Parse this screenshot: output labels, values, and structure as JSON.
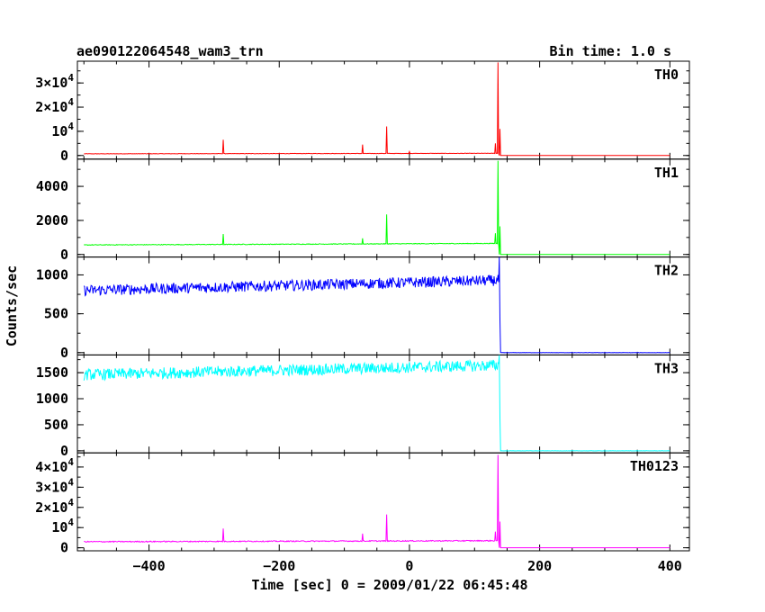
{
  "header": {
    "title": "ae090122064548_wam3_trn",
    "bin_time": "Bin time: 1.0 s"
  },
  "chart_data": {
    "type": "line",
    "title": "ae090122064548_wam3_trn",
    "xlabel": "Time [sec] 0 = 2009/01/22 06:45:48",
    "ylabel": "Counts/sec",
    "xlim": [
      -510,
      430
    ],
    "x_ticks": [
      -400,
      -200,
      0,
      200,
      400
    ],
    "x_tick_labels": [
      "−400",
      "−200",
      "0",
      "200",
      "400"
    ],
    "x_start": -500,
    "x_end": 400,
    "trigger_time": 138,
    "panels": [
      {
        "name": "TH0",
        "color": "#ff0000",
        "ylim": [
          -1500,
          39000
        ],
        "baseline_start": 700,
        "baseline_end": 900,
        "noise": 80,
        "post_level": 0,
        "y_ticks": [
          0,
          10000,
          20000,
          30000
        ],
        "y_tick_labels": [
          {
            "base": "0",
            "exp": ""
          },
          {
            "base": "10",
            "exp": "4"
          },
          {
            "base": "2×10",
            "exp": "4"
          },
          {
            "base": "3×10",
            "exp": "4"
          }
        ],
        "spikes": [
          [
            -286,
            6500
          ],
          [
            -72,
            4500
          ],
          [
            -35,
            12000
          ],
          [
            0,
            1600
          ],
          [
            132,
            5000
          ],
          [
            136,
            38500
          ],
          [
            139,
            11000
          ]
        ]
      },
      {
        "name": "TH1",
        "color": "#00ff00",
        "ylim": [
          -150,
          5600
        ],
        "baseline_start": 560,
        "baseline_end": 650,
        "noise": 20,
        "post_level": 0,
        "y_ticks": [
          0,
          2000,
          4000
        ],
        "y_tick_labels": [
          {
            "base": "0",
            "exp": ""
          },
          {
            "base": "2000",
            "exp": ""
          },
          {
            "base": "4000",
            "exp": ""
          }
        ],
        "spikes": [
          [
            -286,
            1200
          ],
          [
            -72,
            950
          ],
          [
            -35,
            2350
          ],
          [
            132,
            1250
          ],
          [
            136,
            5500
          ],
          [
            139,
            1650
          ]
        ]
      },
      {
        "name": "TH2",
        "color": "#0000ff",
        "ylim": [
          -30,
          1230
        ],
        "baseline_start": 800,
        "baseline_end": 930,
        "noise": 70,
        "post_level": 0,
        "y_ticks": [
          0,
          500,
          1000
        ],
        "y_tick_labels": [
          {
            "base": "0",
            "exp": ""
          },
          {
            "base": "500",
            "exp": ""
          },
          {
            "base": "1000",
            "exp": ""
          }
        ],
        "spikes": [
          [
            138,
            1230
          ],
          [
            139,
            430
          ]
        ]
      },
      {
        "name": "TH3",
        "color": "#00ffff",
        "ylim": [
          -40,
          1840
        ],
        "baseline_start": 1460,
        "baseline_end": 1640,
        "noise": 110,
        "post_level": 0,
        "y_ticks": [
          0,
          500,
          1000,
          1500
        ],
        "y_tick_labels": [
          {
            "base": "0",
            "exp": ""
          },
          {
            "base": "500",
            "exp": ""
          },
          {
            "base": "1000",
            "exp": ""
          },
          {
            "base": "1500",
            "exp": ""
          }
        ],
        "spikes": [
          [
            138,
            1840
          ],
          [
            139,
            650
          ]
        ]
      },
      {
        "name": "TH0123",
        "color": "#ff00ff",
        "ylim": [
          -1500,
          47000
        ],
        "baseline_start": 3000,
        "baseline_end": 3500,
        "noise": 250,
        "post_level": 0,
        "y_ticks": [
          0,
          10000,
          20000,
          30000,
          40000
        ],
        "y_tick_labels": [
          {
            "base": "0",
            "exp": ""
          },
          {
            "base": "10",
            "exp": "4"
          },
          {
            "base": "2×10",
            "exp": "4"
          },
          {
            "base": "3×10",
            "exp": "4"
          },
          {
            "base": "4×10",
            "exp": "4"
          }
        ],
        "spikes": [
          [
            -286,
            9500
          ],
          [
            -72,
            7000
          ],
          [
            -35,
            16500
          ],
          [
            132,
            8000
          ],
          [
            136,
            46000
          ],
          [
            139,
            13000
          ]
        ]
      }
    ]
  }
}
